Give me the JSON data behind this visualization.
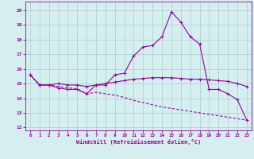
{
  "xlabel": "Windchill (Refroidissement éolien,°C)",
  "background_color": "#d5eef0",
  "line_color": "#990099",
  "grid_color": "#aacccc",
  "xlim": [
    -0.5,
    23.5
  ],
  "ylim": [
    11.8,
    20.6
  ],
  "yticks": [
    12,
    13,
    14,
    15,
    16,
    17,
    18,
    19,
    20
  ],
  "xticks": [
    0,
    1,
    2,
    3,
    4,
    5,
    6,
    7,
    8,
    9,
    10,
    11,
    12,
    13,
    14,
    15,
    16,
    17,
    18,
    19,
    20,
    21,
    22,
    23
  ],
  "series1_x": [
    0,
    1,
    2,
    3,
    4,
    5,
    6,
    7,
    8,
    9,
    10,
    11,
    12,
    13,
    14,
    15,
    16,
    17,
    18,
    19,
    20,
    21,
    22,
    23
  ],
  "series1_y": [
    15.6,
    14.9,
    14.9,
    14.7,
    14.6,
    14.6,
    14.3,
    14.9,
    14.9,
    15.6,
    15.7,
    16.9,
    17.5,
    17.6,
    18.2,
    19.9,
    19.2,
    18.2,
    17.7,
    14.6,
    14.6,
    14.3,
    13.9,
    12.5
  ],
  "series2_x": [
    0,
    1,
    2,
    3,
    4,
    5,
    6,
    7,
    8,
    9,
    10,
    11,
    12,
    13,
    14,
    15,
    16,
    17,
    18,
    19,
    20,
    21,
    22,
    23
  ],
  "series2_y": [
    15.6,
    14.9,
    14.9,
    15.0,
    14.9,
    14.9,
    14.8,
    14.9,
    15.0,
    15.1,
    15.2,
    15.3,
    15.35,
    15.4,
    15.4,
    15.4,
    15.35,
    15.3,
    15.3,
    15.25,
    15.2,
    15.15,
    15.0,
    14.8
  ],
  "series3_x": [
    0,
    1,
    2,
    3,
    4,
    5,
    6,
    7,
    8,
    9,
    10,
    11,
    12,
    13,
    14,
    15,
    16,
    17,
    18,
    19,
    20,
    21,
    22,
    23
  ],
  "series3_y": [
    15.6,
    14.9,
    14.9,
    14.8,
    14.7,
    14.65,
    14.3,
    14.4,
    14.3,
    14.2,
    14.05,
    13.85,
    13.7,
    13.55,
    13.4,
    13.3,
    13.2,
    13.1,
    13.0,
    12.9,
    12.8,
    12.7,
    12.6,
    12.5
  ]
}
